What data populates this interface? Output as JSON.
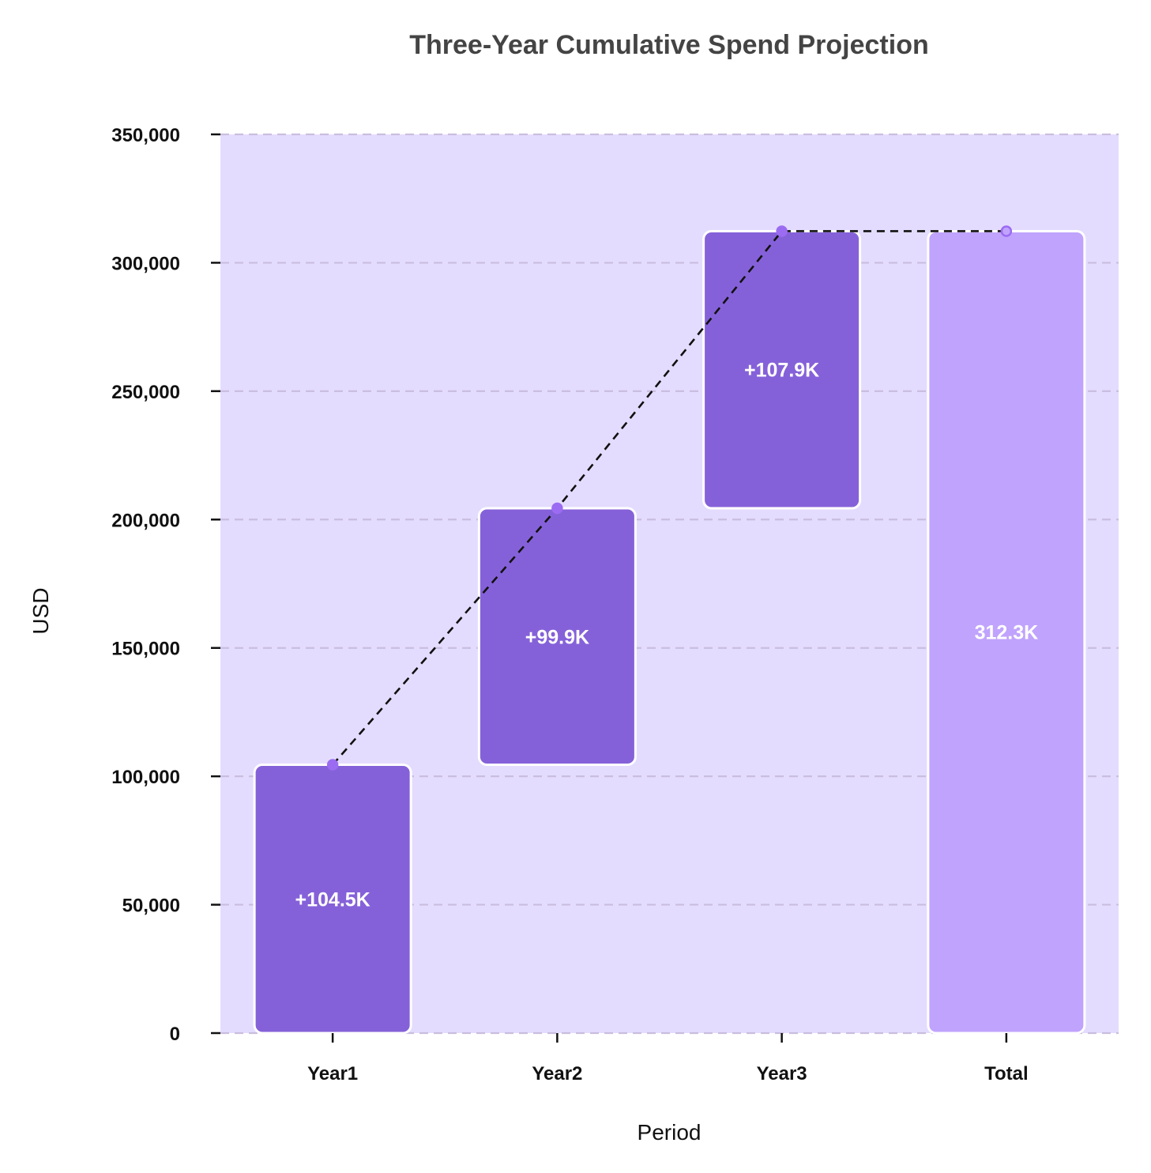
{
  "chart_data": {
    "type": "waterfall",
    "title": "Three-Year Cumulative Spend Projection",
    "xlabel": "Period",
    "ylabel": "USD",
    "ylim": [
      0,
      350000
    ],
    "yticks": [
      0,
      50000,
      100000,
      150000,
      200000,
      250000,
      300000,
      350000
    ],
    "ytick_labels": [
      "0",
      "50,000",
      "100,000",
      "150,000",
      "200,000",
      "250,000",
      "300,000",
      "350,000"
    ],
    "categories": [
      "Year1",
      "Year2",
      "Year3",
      "Total"
    ],
    "bars": [
      {
        "category": "Year1",
        "kind": "increase",
        "start": 0,
        "end": 104500,
        "value": 104500,
        "label": "+104.5K"
      },
      {
        "category": "Year2",
        "kind": "increase",
        "start": 104500,
        "end": 204400,
        "value": 99900,
        "label": "+99.9K"
      },
      {
        "category": "Year3",
        "kind": "increase",
        "start": 204400,
        "end": 312300,
        "value": 107900,
        "label": "+107.9K"
      },
      {
        "category": "Total",
        "kind": "total",
        "start": 0,
        "end": 312300,
        "value": 312300,
        "label": "312.3K"
      }
    ],
    "grid": true,
    "connector_line": "dashed",
    "colors": {
      "plot_background": "#e4dcfe",
      "increase": "#8561d9",
      "total": "#c0a3fd",
      "bar_edge": "#ffffff",
      "marker": "#9b6cf2",
      "grid": "#c9bedf",
      "connector": "#111111"
    }
  }
}
